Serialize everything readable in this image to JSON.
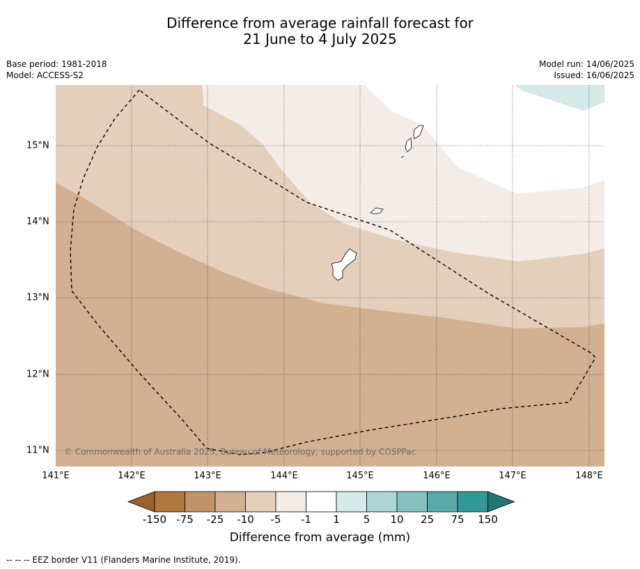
{
  "title_line1": "Difference from average rainfall forecast for",
  "title_line2": "21 June to 4 July 2025",
  "meta_left": {
    "base_period": "Base period: 1981-2018",
    "model": "Model: ACCESS-S2"
  },
  "meta_right": {
    "model_run": "Model run: 14/06/2025",
    "issued": "Issued: 16/06/2025"
  },
  "copyright": "© Commonwealth of Australia 2025, Bureau of Meteorology, supported by COSPPac",
  "x_ticks": [
    "141°E",
    "142°E",
    "143°E",
    "144°E",
    "145°E",
    "146°E",
    "147°E",
    "148°E"
  ],
  "y_ticks": [
    "15°N",
    "14°N",
    "13°N",
    "12°N",
    "11°N"
  ],
  "colorbar": {
    "labels": [
      "-150",
      "-75",
      "-25",
      "-10",
      "-5",
      "-1",
      "1",
      "5",
      "10",
      "25",
      "75",
      "150"
    ],
    "colors": [
      "#9a6231",
      "#b0783f",
      "#c09467",
      "#d2b091",
      "#e3cfbc",
      "#f4ece6",
      "#ffffff",
      "#d6eaea",
      "#add7d5",
      "#84c2c2",
      "#57aaa9",
      "#329998",
      "#247574"
    ],
    "title": "Difference from average (mm)"
  },
  "legend_footnote": "--  --  -- EEZ border V11 (Flanders Marine Institute, 2019)."
}
